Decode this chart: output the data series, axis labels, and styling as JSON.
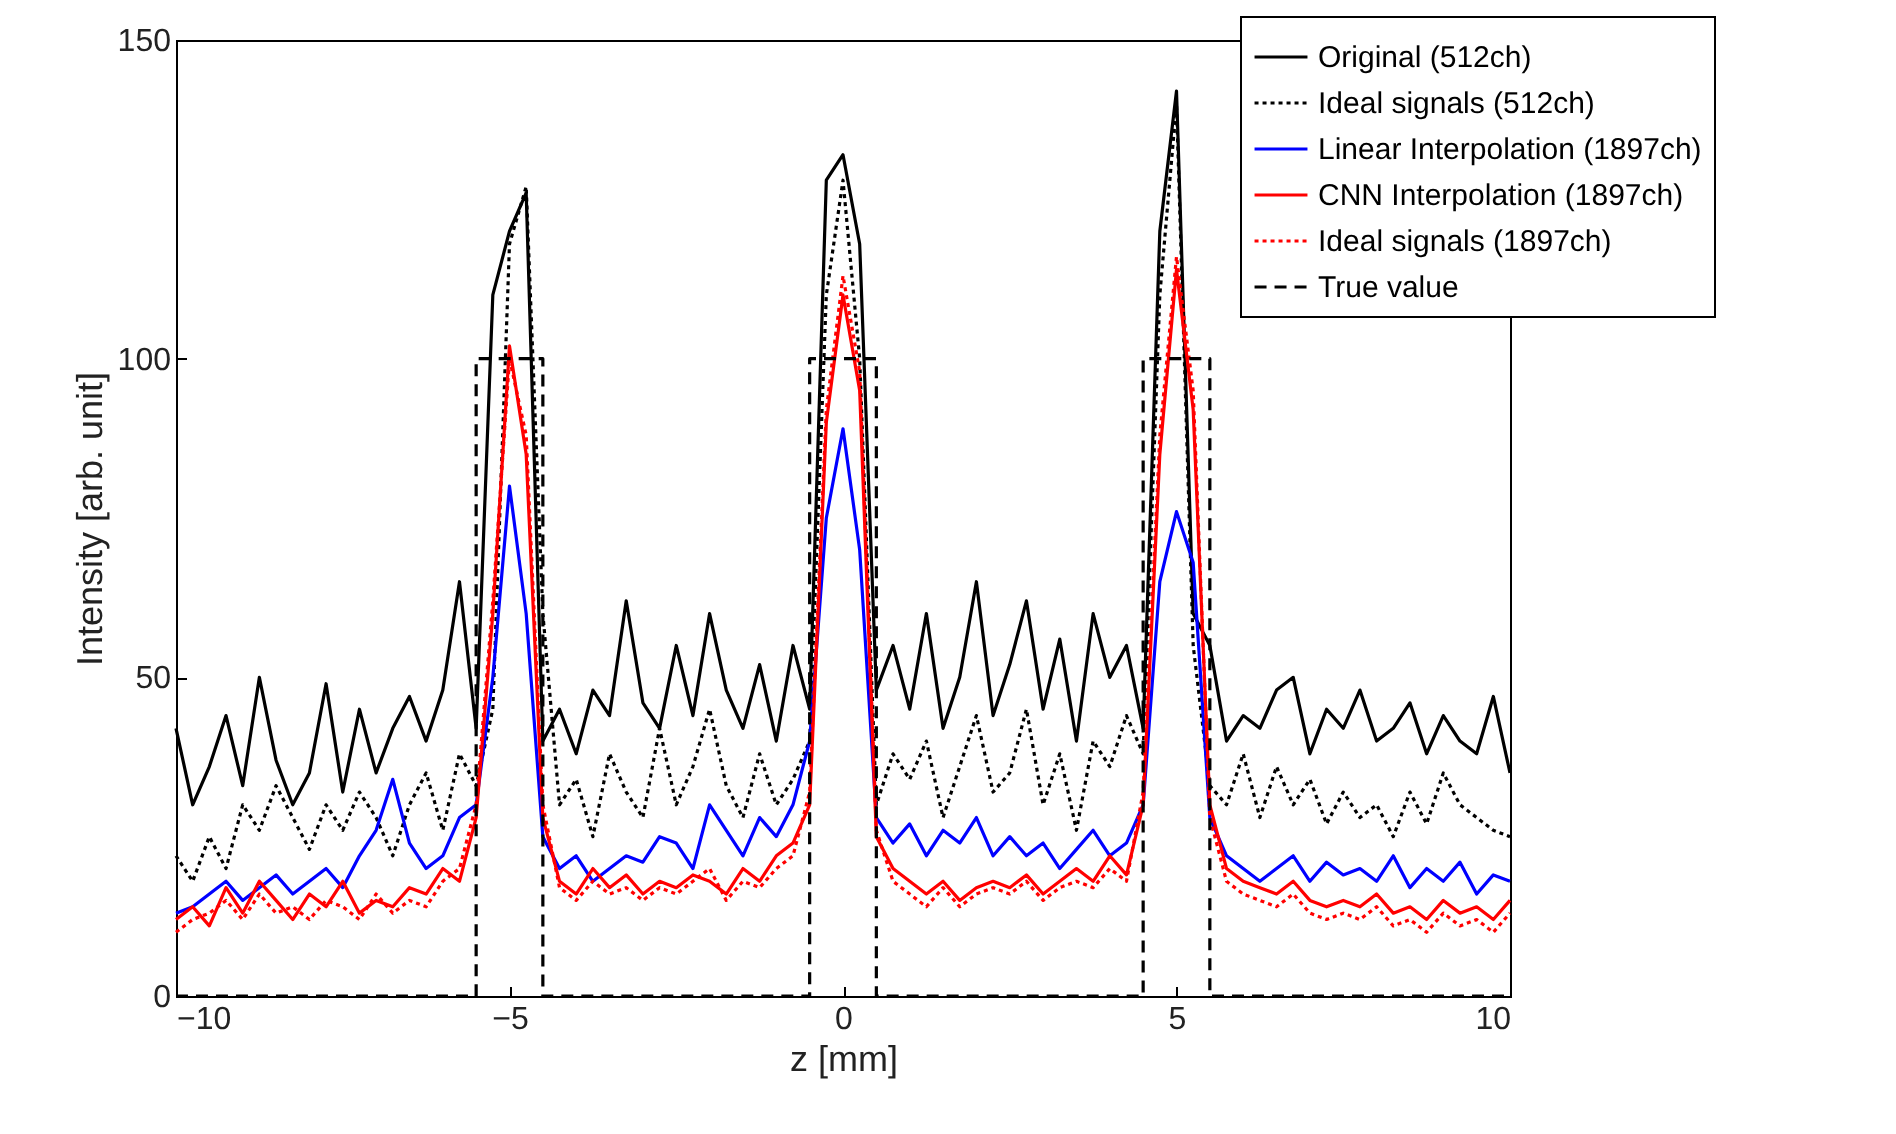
{
  "chart_data": {
    "type": "line",
    "xlabel": "z [mm]",
    "ylabel": "Intensity [arb. unit]",
    "x": [
      -10,
      -9.75,
      -9.5,
      -9.25,
      -9,
      -8.75,
      -8.5,
      -8.25,
      -8,
      -7.75,
      -7.5,
      -7.25,
      -7,
      -6.75,
      -6.5,
      -6.25,
      -6,
      -5.75,
      -5.5,
      -5.25,
      -5,
      -4.75,
      -4.5,
      -4.25,
      -4,
      -3.75,
      -3.5,
      -3.25,
      -3,
      -2.75,
      -2.5,
      -2.25,
      -2,
      -1.75,
      -1.5,
      -1.25,
      -1,
      -0.75,
      -0.5,
      -0.25,
      0,
      0.25,
      0.5,
      0.75,
      1,
      1.25,
      1.5,
      1.75,
      2,
      2.25,
      2.5,
      2.75,
      3,
      3.25,
      3.5,
      3.75,
      4,
      4.25,
      4.5,
      4.75,
      5,
      5.25,
      5.5,
      5.75,
      6,
      6.25,
      6.5,
      6.75,
      7,
      7.25,
      7.5,
      7.75,
      8,
      8.25,
      8.5,
      8.75,
      9,
      9.25,
      9.5,
      9.75,
      10
    ],
    "series": [
      {
        "name": "Original (512ch)",
        "color": "#000000",
        "line_style": "solid",
        "values": [
          42,
          30,
          36,
          44,
          33,
          50,
          37,
          30,
          35,
          49,
          32,
          45,
          35,
          42,
          47,
          40,
          48,
          65,
          42,
          110,
          120,
          126,
          40,
          45,
          38,
          48,
          44,
          62,
          46,
          42,
          55,
          44,
          60,
          48,
          42,
          52,
          40,
          55,
          45,
          128,
          132,
          118,
          48,
          55,
          45,
          60,
          42,
          50,
          65,
          44,
          52,
          62,
          45,
          56,
          40,
          60,
          50,
          55,
          42,
          120,
          142,
          60,
          55,
          40,
          44,
          42,
          48,
          50,
          38,
          45,
          42,
          48,
          40,
          42,
          46,
          38,
          44,
          40,
          38,
          47,
          35
        ]
      },
      {
        "name": "Ideal signals (512ch)",
        "color": "#000000",
        "line_style": "dotted",
        "values": [
          22,
          18,
          25,
          20,
          30,
          26,
          33,
          28,
          23,
          30,
          26,
          32,
          28,
          22,
          30,
          35,
          26,
          38,
          33,
          45,
          118,
          127,
          60,
          30,
          34,
          25,
          38,
          32,
          28,
          42,
          30,
          36,
          45,
          33,
          28,
          38,
          30,
          34,
          40,
          110,
          128,
          100,
          30,
          38,
          34,
          40,
          28,
          36,
          44,
          32,
          35,
          45,
          30,
          38,
          26,
          40,
          36,
          44,
          38,
          110,
          140,
          55,
          33,
          30,
          38,
          28,
          36,
          30,
          34,
          27,
          32,
          28,
          30,
          25,
          32,
          27,
          35,
          30,
          28,
          26,
          25
        ]
      },
      {
        "name": "Linear Interpolation (1897ch)",
        "color": "#0000ff",
        "line_style": "solid",
        "values": [
          13,
          14,
          16,
          18,
          15,
          17,
          19,
          16,
          18,
          20,
          17,
          22,
          26,
          34,
          24,
          20,
          22,
          28,
          30,
          50,
          80,
          60,
          25,
          20,
          22,
          18,
          20,
          22,
          21,
          25,
          24,
          20,
          30,
          26,
          22,
          28,
          25,
          30,
          40,
          75,
          89,
          70,
          28,
          24,
          27,
          22,
          26,
          24,
          28,
          22,
          25,
          22,
          24,
          20,
          23,
          26,
          22,
          24,
          30,
          65,
          76,
          68,
          28,
          22,
          20,
          18,
          20,
          22,
          18,
          21,
          19,
          20,
          18,
          22,
          17,
          20,
          18,
          21,
          16,
          19,
          18
        ]
      },
      {
        "name": "CNN Interpolation (1897ch)",
        "color": "#ff0000",
        "line_style": "solid",
        "values": [
          12,
          14,
          11,
          17,
          13,
          18,
          15,
          12,
          16,
          14,
          18,
          13,
          15,
          14,
          17,
          16,
          20,
          18,
          28,
          60,
          102,
          85,
          28,
          18,
          16,
          20,
          17,
          19,
          16,
          18,
          17,
          19,
          18,
          16,
          20,
          18,
          22,
          24,
          30,
          90,
          110,
          95,
          25,
          20,
          18,
          16,
          18,
          15,
          17,
          18,
          17,
          19,
          16,
          18,
          20,
          18,
          22,
          19,
          30,
          85,
          114,
          92,
          30,
          20,
          18,
          17,
          16,
          18,
          15,
          14,
          15,
          14,
          16,
          13,
          14,
          12,
          15,
          13,
          14,
          12,
          15
        ]
      },
      {
        "name": "Ideal signals (1897ch)",
        "color": "#ff0000",
        "line_style": "dotted",
        "values": [
          10,
          12,
          13,
          15,
          12,
          16,
          13,
          14,
          12,
          15,
          14,
          12,
          16,
          13,
          15,
          14,
          18,
          20,
          30,
          62,
          100,
          88,
          30,
          17,
          15,
          18,
          16,
          17,
          15,
          17,
          16,
          18,
          20,
          15,
          18,
          17,
          20,
          22,
          32,
          92,
          113,
          98,
          26,
          18,
          16,
          14,
          17,
          14,
          16,
          17,
          16,
          18,
          15,
          17,
          18,
          17,
          20,
          18,
          32,
          88,
          116,
          95,
          28,
          18,
          16,
          15,
          14,
          16,
          13,
          12,
          13,
          12,
          14,
          11,
          12,
          10,
          13,
          11,
          12,
          10,
          13
        ]
      },
      {
        "name": "True value",
        "color": "#000000",
        "line_style": "dashed",
        "x": [
          -10,
          -5.5,
          -5.5,
          -4.5,
          -4.5,
          -0.5,
          -0.5,
          0.5,
          0.5,
          4.5,
          4.5,
          5.5,
          5.5,
          10
        ],
        "values": [
          0,
          0,
          100,
          100,
          0,
          0,
          100,
          100,
          0,
          0,
          100,
          100,
          0,
          0
        ]
      }
    ],
    "xlim": [
      -10,
      10
    ],
    "xticks": [
      -10,
      -5,
      0,
      5,
      10
    ],
    "ylim": [
      0,
      150
    ],
    "yticks": [
      0,
      50,
      100,
      150
    ],
    "legend": "top right"
  }
}
